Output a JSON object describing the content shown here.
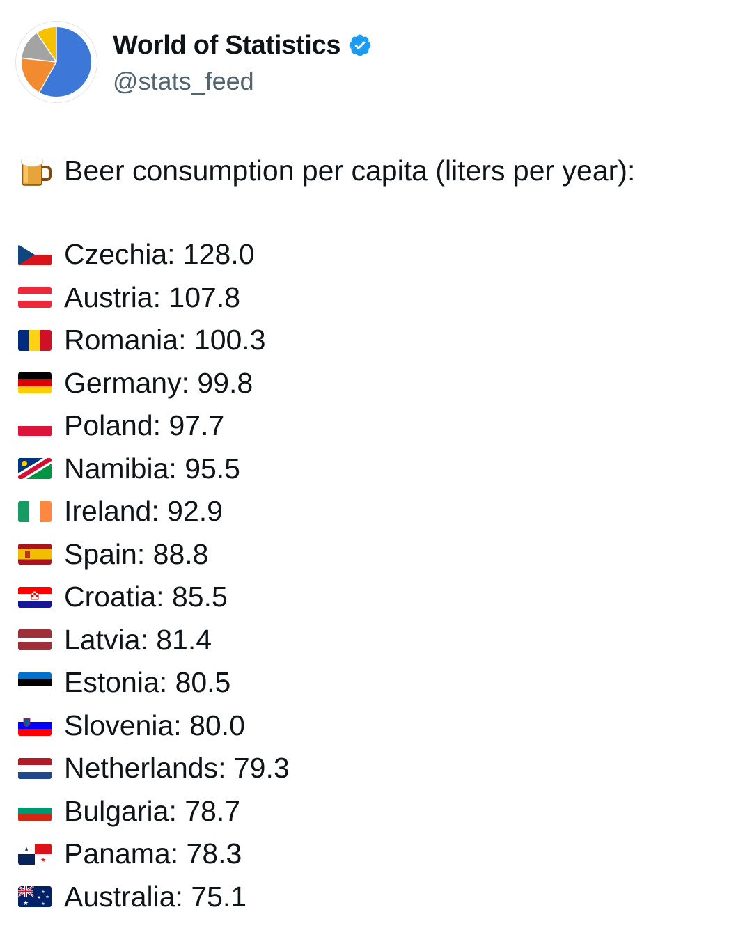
{
  "account": {
    "display_name": "World of Statistics",
    "handle": "@stats_feed",
    "verified_badge_icon": "verified-badge-icon",
    "badge_color": "#1d9bf0",
    "avatar": {
      "icon": "pie-chart-icon",
      "colors": [
        "#3d78d8",
        "#f28a30",
        "#a3a3a3",
        "#f6c200"
      ]
    }
  },
  "tweet": {
    "intro_icon": "beer-mug-icon",
    "intro": "Beer consumption per capita (liters per year):",
    "items": [
      {
        "country": "Czechia",
        "value": "128.0",
        "flag": "cz"
      },
      {
        "country": "Austria",
        "value": "107.8",
        "flag": "at"
      },
      {
        "country": "Romania",
        "value": "100.3",
        "flag": "ro"
      },
      {
        "country": "Germany",
        "value": "99.8",
        "flag": "de"
      },
      {
        "country": "Poland",
        "value": "97.7",
        "flag": "pl"
      },
      {
        "country": "Namibia",
        "value": "95.5",
        "flag": "na"
      },
      {
        "country": "Ireland",
        "value": "92.9",
        "flag": "ie"
      },
      {
        "country": "Spain",
        "value": "88.8",
        "flag": "es"
      },
      {
        "country": "Croatia",
        "value": "85.5",
        "flag": "hr"
      },
      {
        "country": "Latvia",
        "value": "81.4",
        "flag": "lv"
      },
      {
        "country": "Estonia",
        "value": "80.5",
        "flag": "ee"
      },
      {
        "country": "Slovenia",
        "value": "80.0",
        "flag": "si"
      },
      {
        "country": "Netherlands",
        "value": "79.3",
        "flag": "nl"
      },
      {
        "country": "Bulgaria",
        "value": "78.7",
        "flag": "bg"
      },
      {
        "country": "Panama",
        "value": "78.3",
        "flag": "pa"
      },
      {
        "country": "Australia",
        "value": "75.1",
        "flag": "au"
      }
    ]
  }
}
